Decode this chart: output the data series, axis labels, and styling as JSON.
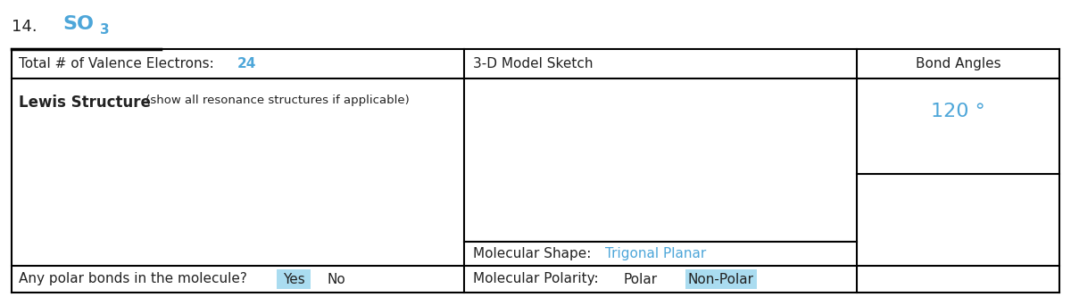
{
  "item_number": "14.",
  "molecule": "SO",
  "molecule_sub": "3",
  "blue_color": "#4da6d9",
  "black_color": "#222222",
  "bg_color": "#ffffff",
  "highlight_color": "#aadcf0",
  "total_valence_label": "Total # of Valence Electrons: ",
  "total_valence_value": "24",
  "lewis_bold": "Lewis Structure",
  "lewis_normal": " (show all resonance structures if applicable)",
  "model_sketch_label": "3-D Model Sketch",
  "bond_angles_label": "Bond Angles",
  "bond_angles_value": "120 °",
  "mol_shape_label": "Molecular Shape: ",
  "mol_shape_value": "Trigonal Planar",
  "mol_polarity_label": "Molecular Polarity:",
  "polar_label": "Polar",
  "nonpolar_label": "Non-Polar",
  "polar_bonds_label": "Any polar bonds in the molecule?",
  "yes_label": "Yes",
  "no_label": "No",
  "lw": 1.5
}
